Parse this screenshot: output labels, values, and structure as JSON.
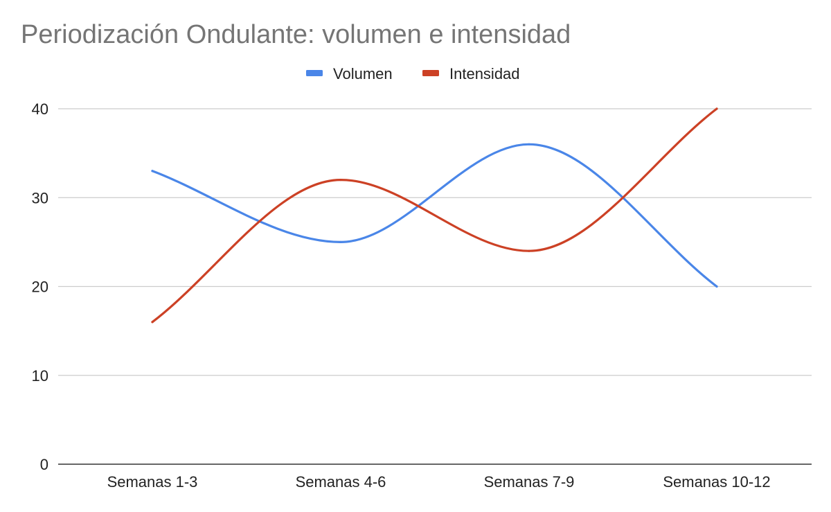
{
  "chart_data": {
    "type": "line",
    "title": "Periodización Ondulante: volumen e intensidad",
    "xlabel": "",
    "ylabel": "",
    "categories": [
      "Semanas 1-3",
      "Semanas 4-6",
      "Semanas 7-9",
      "Semanas 10-12"
    ],
    "series": [
      {
        "name": "Volumen",
        "values": [
          33,
          25,
          36,
          20
        ],
        "color": "#4a86e8"
      },
      {
        "name": "Intensidad",
        "values": [
          16,
          32,
          24,
          40
        ],
        "color": "#cc4125"
      }
    ],
    "ylim": [
      0,
      40
    ],
    "yticks": [
      "0",
      "10",
      "20",
      "30",
      "40"
    ],
    "grid": true,
    "smooth": true,
    "legend_position": "top-center"
  }
}
